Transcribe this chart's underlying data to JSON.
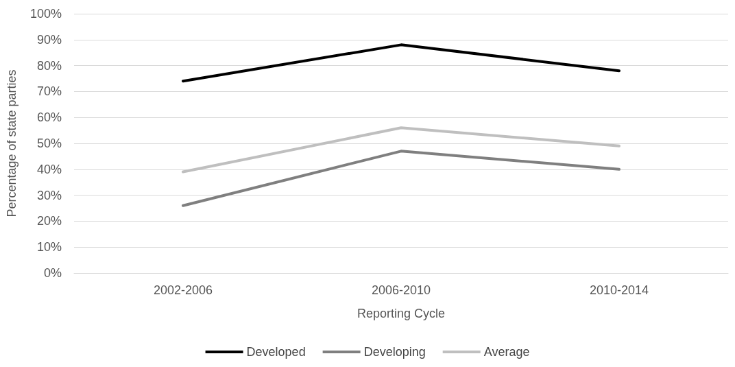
{
  "chart_data": {
    "type": "line",
    "xlabel": "Reporting Cycle",
    "ylabel": "Percentage of state parties",
    "categories": [
      "2002-2006",
      "2006-2010",
      "2010-2014"
    ],
    "series": [
      {
        "name": "Developed",
        "color": "#000000",
        "values": [
          74,
          88,
          78
        ]
      },
      {
        "name": "Developing",
        "color": "#7f7f7f",
        "values": [
          26,
          47,
          40
        ]
      },
      {
        "name": "Average",
        "color": "#bfbfbf",
        "values": [
          39,
          56,
          49
        ]
      }
    ],
    "ylim": [
      0,
      100
    ],
    "yticks": [
      {
        "value": 0,
        "label": "0%"
      },
      {
        "value": 10,
        "label": "10%"
      },
      {
        "value": 20,
        "label": "20%"
      },
      {
        "value": 30,
        "label": "30%"
      },
      {
        "value": 40,
        "label": "40%"
      },
      {
        "value": 50,
        "label": "50%"
      },
      {
        "value": 60,
        "label": "60%"
      },
      {
        "value": 70,
        "label": "70%"
      },
      {
        "value": 80,
        "label": "80%"
      },
      {
        "value": 90,
        "label": "90%"
      },
      {
        "value": 100,
        "label": "100%"
      }
    ],
    "grid": "y",
    "legend": "bottom",
    "marker": "none",
    "line_style": "solid"
  }
}
